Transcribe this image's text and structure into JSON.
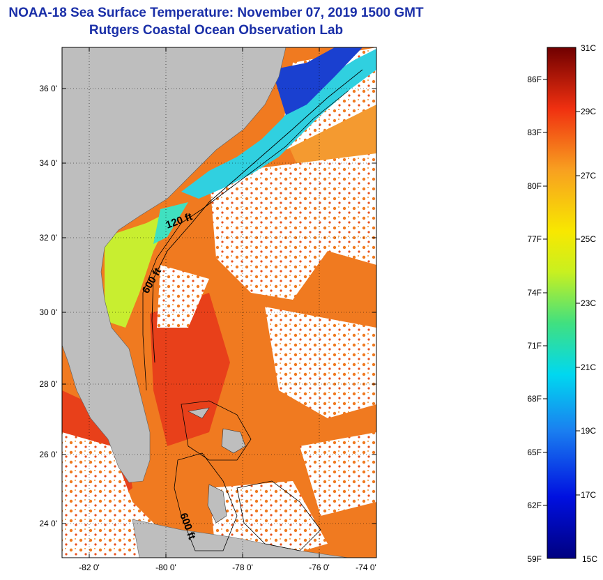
{
  "title": {
    "line1": "NOAA-18 Sea Surface Temperature:  November 07, 2019 1500 GMT",
    "line2": "Rutgers Coastal Ocean Observation Lab"
  },
  "axes": {
    "lat_labels": [
      "36 0'",
      "34 0'",
      "32 0'",
      "30 0'",
      "28 0'",
      "26 0'",
      "24 0'"
    ],
    "lon_labels": [
      "-82 0'",
      "-80 0'",
      "-78 0'",
      "-76 0'",
      "-74 0'"
    ]
  },
  "contours": {
    "label_120": "120 ft",
    "label_600a": "600 ft",
    "label_600b": "600 ft"
  },
  "colorbar": {
    "celsius": [
      "31C",
      "29C",
      "27C",
      "25C",
      "23C",
      "21C",
      "19C",
      "17C",
      "15C"
    ],
    "fahrenheit": [
      "86F",
      "83F",
      "80F",
      "77F",
      "74F",
      "71F",
      "68F",
      "65F",
      "62F",
      "59F"
    ]
  },
  "colors": {
    "land": "#bebebe",
    "ocean_warm": "#f07a20",
    "ocean_hot": "#e8401a",
    "cloud": "#ffffff",
    "title": "#1a2fa8"
  }
}
